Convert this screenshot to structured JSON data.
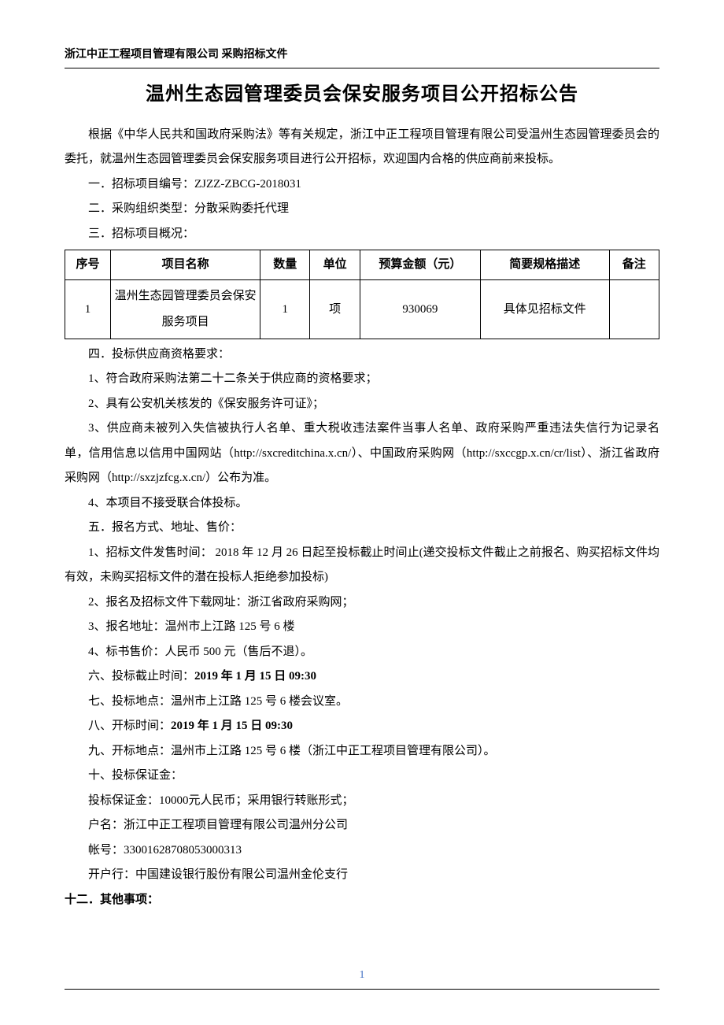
{
  "header": "浙江中正工程项目管理有限公司 采购招标文件",
  "title": "温州生态园管理委员会保安服务项目公开招标公告",
  "intro": "根据《中华人民共和国政府采购法》等有关规定，浙江中正工程项目管理有限公司受温州生态园管理委员会的委托，就温州生态园管理委员会保安服务项目进行公开招标，欢迎国内合格的供应商前来投标。",
  "sec1": "一．招标项目编号：ZJZZ-ZBCG-2018031",
  "sec2": "二．采购组织类型：分散采购委托代理",
  "sec3": "三．招标项目概况：",
  "table": {
    "headers": [
      "序号",
      "项目名称",
      "数量",
      "单位",
      "预算金额（元）",
      "简要规格描述",
      "备注"
    ],
    "rows": [
      [
        "1",
        "温州生态园管理委员会保安服务项目",
        "1",
        "项",
        "930069",
        "具体见招标文件",
        ""
      ]
    ]
  },
  "sec4": "四．投标供应商资格要求：",
  "sec4_1": "1、符合政府采购法第二十二条关于供应商的资格要求；",
  "sec4_2": "2、具有公安机关核发的《保安服务许可证》；",
  "sec4_3a": "3、供应商未被列入失信被执行人名单、重大税收违法案件当事人名单、政府采购严重违法失信行为记录名单，信用信息以信用中国网站（http://sxcreditchina.x.cn/）、中国政府采购网（http://sxccgp.x.cn/cr/list）、浙江省政府采购网（http://sxzjzfcg.x.cn/）公布为准。",
  "sec4_4": "4、本项目不接受联合体投标。",
  "sec5": "五．报名方式、地址、售价：",
  "sec5_1": "1、招标文件发售时间： 2018 年 12 月 26 日起至投标截止时间止(递交投标文件截止之前报名、购买招标文件均有效，未购买招标文件的潜在投标人拒绝参加投标)",
  "sec5_2": "2、报名及招标文件下载网址：浙江省政府采购网；",
  "sec5_3": "3、报名地址：温州市上江路 125 号 6 楼",
  "sec5_4": "4、标书售价：人民币 500 元（售后不退）。",
  "sec6_label": "六、投标截止时间：",
  "sec6_value": "2019 年 1 月 15 日  09:30",
  "sec7": "七、投标地点：温州市上江路 125 号 6 楼会议室。",
  "sec8_label": "八、开标时间：",
  "sec8_value": "2019 年 1 月 15 日  09:30",
  "sec9": "九、开标地点：温州市上江路 125 号 6 楼（浙江中正工程项目管理有限公司）。",
  "sec10": "十、投标保证金：",
  "sec10_1": "投标保证金：10000元人民币；采用银行转账形式；",
  "sec10_2": "户名：浙江中正工程项目管理有限公司温州分公司",
  "sec10_3": "帐号：33001628708053000313",
  "sec10_4": "开户行：中国建设银行股份有限公司温州金伦支行",
  "sec12": "十二．其他事项：",
  "pageNumber": "1"
}
